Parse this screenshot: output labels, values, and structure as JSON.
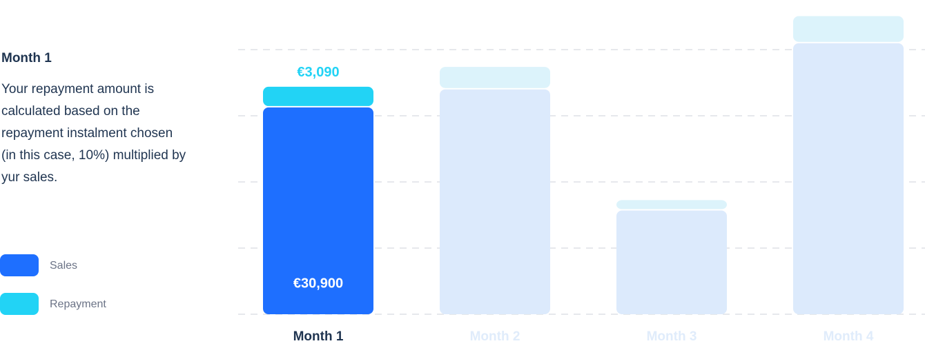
{
  "panel": {
    "title": "Month 1",
    "text": "Your repayment amount is calculated based on the repayment instalment chosen (in this case, 10%) multiplied by yur sales."
  },
  "chart_data": {
    "type": "stacked-bar",
    "categories": [
      "Month 1",
      "Month 2",
      "Month 3",
      "Month 4"
    ],
    "active": 0,
    "series": [
      {
        "name": "Sales",
        "color": "#1e6fff",
        "muted_color": "#dceafc",
        "values": [
          30900,
          33600,
          15500,
          40500
        ],
        "value_labels": [
          "€30,900",
          null,
          null,
          null
        ]
      },
      {
        "name": "Repayment",
        "color": "#22d3f5",
        "muted_color": "#dcf3fb",
        "values": [
          3090,
          3360,
          1550,
          4050
        ],
        "value_labels": [
          "€3,090",
          null,
          null,
          null
        ]
      }
    ],
    "ylim": [
      0,
      45000
    ]
  }
}
